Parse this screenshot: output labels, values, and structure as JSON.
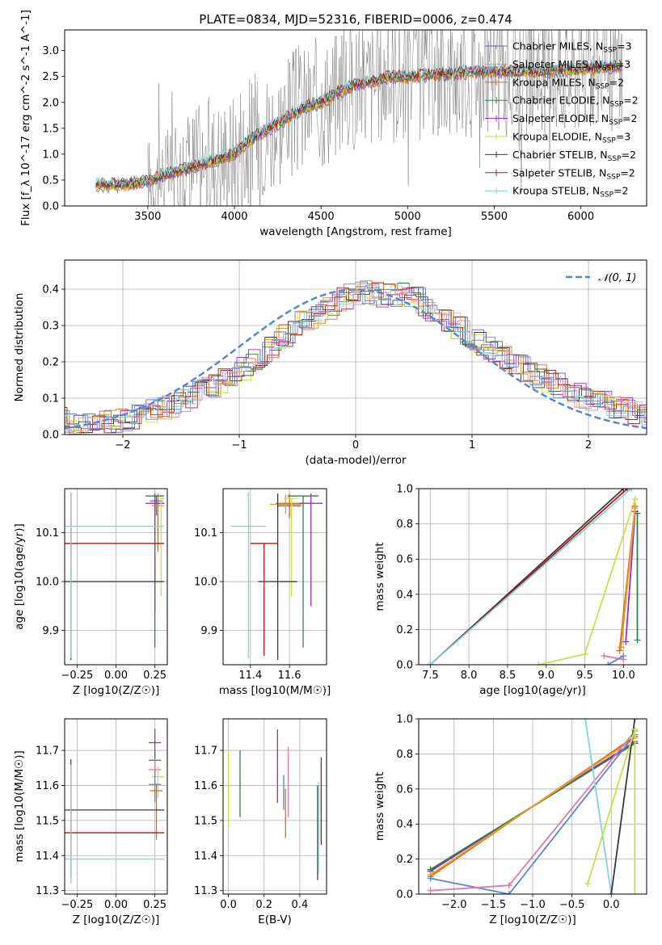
{
  "title": "PLATE=0834, MJD=52316, FIBERID=0006, z=0.474",
  "colors": {
    "chabrier_miles": "#6b5bb5",
    "salpeter_miles": "#e0a020",
    "kroupa_miles": "#e06a1a",
    "chabrier_elodie": "#3a7a4a",
    "salpeter_elodie": "#9a2ec0",
    "kroupa_elodie": "#c8e04a",
    "chabrier_stelib": "#3a3a3a",
    "salpeter_stelib": "#b01818",
    "kroupa_stelib": "#7fd6e0",
    "normal": "#5b84d6",
    "extra_blue": "#5b84d6",
    "extra_pink": "#e07aa8",
    "data": "#7a7a7a",
    "grid": "#b0b0b0"
  },
  "chart_data": [
    {
      "id": "spectrum",
      "type": "line",
      "title": "PLATE=0834, MJD=52316, FIBERID=0006, z=0.474",
      "xlabel": "wavelength [Angstrom, rest frame]",
      "ylabel": "Flux [f_λ 10^-17 erg cm^-2 s^-1 A^-1]",
      "xlim": [
        3020,
        6380
      ],
      "ylim": [
        0,
        3.4
      ],
      "xticks": [
        "3500",
        "4000",
        "4500",
        "5000",
        "5500",
        "6000"
      ],
      "yticks": [
        "0.0",
        "0.5",
        "1.0",
        "1.5",
        "2.0",
        "2.5",
        "3.0"
      ],
      "grid": false,
      "legend_position": "top-right",
      "model_curve": {
        "x": [
          3200,
          3400,
          3500,
          3600,
          3700,
          3800,
          3900,
          4000,
          4100,
          4200,
          4300,
          4400,
          4500,
          4600,
          4700,
          4800,
          4900,
          5000,
          5200,
          5400,
          5600,
          5800,
          6000,
          6240
        ],
        "y": [
          0.4,
          0.42,
          0.48,
          0.6,
          0.7,
          0.8,
          0.9,
          1.0,
          1.3,
          1.5,
          1.7,
          1.9,
          2.0,
          2.2,
          2.35,
          2.4,
          2.5,
          2.5,
          2.55,
          2.6,
          2.6,
          2.6,
          2.65,
          2.7
        ]
      },
      "series": [
        {
          "name": "Chabrier MILES, N_SSP=3",
          "color_key": "chabrier_miles",
          "marker": "-"
        },
        {
          "name": "Salpeter MILES, N_SSP=3",
          "color_key": "salpeter_miles",
          "marker": "-"
        },
        {
          "name": "Kroupa MILES, N_SSP=2",
          "color_key": "kroupa_miles",
          "marker": "+"
        },
        {
          "name": "Chabrier ELODIE, N_SSP=2",
          "color_key": "chabrier_elodie",
          "marker": "+"
        },
        {
          "name": "Salpeter ELODIE, N_SSP=2",
          "color_key": "salpeter_elodie",
          "marker": "+"
        },
        {
          "name": "Kroupa ELODIE, N_SSP=3",
          "color_key": "kroupa_elodie",
          "marker": "+"
        },
        {
          "name": "Chabrier STELIB, N_SSP=2",
          "color_key": "chabrier_stelib",
          "marker": "+"
        },
        {
          "name": "Salpeter STELIB, N_SSP=2",
          "color_key": "salpeter_stelib",
          "marker": "+"
        },
        {
          "name": "Kroupa STELIB, N_SSP=2",
          "color_key": "kroupa_stelib",
          "marker": "+"
        }
      ]
    },
    {
      "id": "residual-histogram",
      "type": "line",
      "xlabel": "(data-model)/error",
      "ylabel": "Normed distribution",
      "xlim": [
        -2.5,
        2.5
      ],
      "ylim": [
        0,
        0.48
      ],
      "xticks": [
        "-2",
        "-1",
        "0",
        "1",
        "2"
      ],
      "yticks": [
        "0.0",
        "0.1",
        "0.2",
        "0.3",
        "0.4"
      ],
      "grid": true,
      "legend_position": "top-right",
      "legend": "𝒩(0, 1)",
      "histogram_envelope": {
        "x": [
          -2.5,
          -2.0,
          -1.5,
          -1.0,
          -0.5,
          0.0,
          0.5,
          1.0,
          1.5,
          2.0,
          2.5
        ],
        "y": [
          0.02,
          0.04,
          0.09,
          0.17,
          0.3,
          0.39,
          0.38,
          0.27,
          0.17,
          0.1,
          0.05
        ]
      }
    },
    {
      "id": "age-vs-z",
      "type": "scatter",
      "xlabel": "Z [log10(Z/Z☉)]",
      "ylabel": "age [log10(age/yr)]",
      "xlim": [
        -0.33,
        0.33
      ],
      "ylim": [
        9.83,
        10.19
      ],
      "xticks": [
        "-0.25",
        "0.00",
        "0.25"
      ],
      "yticks": [
        "9.9",
        "10.0",
        "10.1"
      ],
      "grid": true,
      "points": [
        {
          "x": 0.26,
          "y": 10.165,
          "xerr": 0.04,
          "yerr": [
            0.03,
            0.01
          ],
          "c": "chabrier_miles"
        },
        {
          "x": 0.27,
          "y": 10.155,
          "xerr": 0.04,
          "yerr": [
            0.08,
            0.02
          ],
          "c": "salpeter_miles"
        },
        {
          "x": 0.27,
          "y": 10.16,
          "xerr": 0.04,
          "yerr": [
            0.1,
            0.02
          ],
          "c": "kroupa_miles"
        },
        {
          "x": 0.25,
          "y": 10.175,
          "xerr": 0.06,
          "yerr": [
            0.31,
            0.0
          ],
          "c": "chabrier_elodie"
        },
        {
          "x": 0.25,
          "y": 10.16,
          "xerr": 0.06,
          "yerr": [
            0.22,
            0.02
          ],
          "c": "salpeter_elodie"
        },
        {
          "x": 0.29,
          "y": 10.17,
          "xerr": 0.02,
          "yerr": [
            0.2,
            0.0
          ],
          "c": "kroupa_elodie"
        },
        {
          "x": -0.29,
          "y": 10.0,
          "xerr": 0.6,
          "yerr": [
            0.16,
            0.18
          ],
          "c": "chabrier_stelib"
        },
        {
          "x": -0.29,
          "y": 10.078,
          "xerr": 0.6,
          "yerr": [
            0.06,
            0.1
          ],
          "c": "salpeter_stelib"
        },
        {
          "x": -0.29,
          "y": 10.113,
          "xerr": 0.6,
          "yerr": [
            0.27,
            0.07
          ],
          "c": "kroupa_stelib"
        }
      ]
    },
    {
      "id": "age-vs-mass",
      "type": "scatter",
      "xlabel": "mass [log10(M/M☉)]",
      "xlim": [
        11.26,
        11.79
      ],
      "ylim": [
        9.83,
        10.19
      ],
      "xticks": [
        "11.4",
        "11.6"
      ],
      "yticks": [
        "9.9",
        "10.0",
        "10.1"
      ],
      "grid": true,
      "points": [
        {
          "x": 11.6,
          "y": 10.155,
          "xerr": 0.06,
          "yerr": [
            0.02,
            0.02
          ],
          "c": "chabrier_miles"
        },
        {
          "x": 11.58,
          "y": 10.158,
          "xerr": 0.08,
          "yerr": [
            0.02,
            0.02
          ],
          "c": "salpeter_miles"
        },
        {
          "x": 11.6,
          "y": 10.16,
          "xerr": 0.07,
          "yerr": [
            0.03,
            0.02
          ],
          "c": "kroupa_miles"
        },
        {
          "x": 11.67,
          "y": 10.175,
          "xerr": 0.08,
          "yerr": [
            0.31,
            0.0
          ],
          "c": "chabrier_elodie"
        },
        {
          "x": 11.71,
          "y": 10.16,
          "xerr": 0.06,
          "yerr": [
            0.21,
            0.02
          ],
          "c": "salpeter_elodie"
        },
        {
          "x": 11.61,
          "y": 10.17,
          "xerr": 0.04,
          "yerr": [
            0.2,
            0.0
          ],
          "c": "kroupa_elodie"
        },
        {
          "x": 11.54,
          "y": 10.0,
          "xerr": 0.1,
          "yerr": [
            0.16,
            0.18
          ],
          "c": "chabrier_stelib"
        },
        {
          "x": 11.47,
          "y": 10.078,
          "xerr": 0.07,
          "yerr": [
            0.23,
            0.0
          ],
          "c": "salpeter_stelib"
        },
        {
          "x": 11.39,
          "y": 10.113,
          "xerr": 0.09,
          "yerr": [
            0.27,
            0.07
          ],
          "c": "kroupa_stelib"
        }
      ]
    },
    {
      "id": "mass-weight-vs-age",
      "type": "line",
      "xlabel": "age [log10(age/yr)]",
      "ylabel": "mass weight",
      "xlim": [
        7.35,
        10.3
      ],
      "ylim": [
        0,
        1
      ],
      "xticks": [
        "7.5",
        "8.0",
        "8.5",
        "9.0",
        "9.5",
        "10.0"
      ],
      "yticks": [
        "0.0",
        "0.2",
        "0.4",
        "0.6",
        "0.8",
        "1.0"
      ],
      "grid": true,
      "series": [
        {
          "c": "chabrier_stelib",
          "x": [
            7.5,
            10.0
          ],
          "y": [
            0.0,
            1.0
          ]
        },
        {
          "c": "salpeter_stelib",
          "x": [
            7.5,
            10.05
          ],
          "y": [
            0.0,
            1.0
          ]
        },
        {
          "c": "kroupa_stelib",
          "x": [
            7.5,
            10.1
          ],
          "y": [
            0.0,
            1.0
          ]
        },
        {
          "c": "kroupa_elodie",
          "x": [
            8.9,
            9.5,
            10.15
          ],
          "y": [
            0.0,
            0.06,
            0.94
          ]
        },
        {
          "c": "chabrier_elodie",
          "x": [
            10.18,
            10.18
          ],
          "y": [
            0.14,
            0.86
          ]
        },
        {
          "c": "salpeter_elodie",
          "x": [
            10.03,
            10.15
          ],
          "y": [
            0.13,
            0.87
          ]
        },
        {
          "c": "kroupa_miles",
          "x": [
            9.95,
            10.15
          ],
          "y": [
            0.08,
            0.9
          ]
        },
        {
          "c": "salpeter_miles",
          "x": [
            9.97,
            10.15
          ],
          "y": [
            0.1,
            0.89
          ]
        },
        {
          "c": "extra_pink",
          "x": [
            9.75,
            10.0
          ],
          "y": [
            0.05,
            0.03
          ]
        },
        {
          "c": "extra_blue",
          "x": [
            9.8,
            10.0
          ],
          "y": [
            0.0,
            0.05
          ]
        }
      ]
    },
    {
      "id": "mass-vs-z",
      "type": "scatter",
      "xlabel": "Z [log10(Z/Z☉)]",
      "ylabel": "mass [log10(M/M☉)]",
      "xlim": [
        -0.33,
        0.33
      ],
      "ylim": [
        11.29,
        11.79
      ],
      "xticks": [
        "-0.25",
        "0.00",
        "0.25"
      ],
      "yticks": [
        "11.3",
        "11.4",
        "11.5",
        "11.6",
        "11.7"
      ],
      "grid": true,
      "points": [
        {
          "x": 0.25,
          "y": 11.722,
          "xerr": 0.04,
          "yerr": [
            0.04,
            0.04
          ],
          "c": "salpeter_elodie"
        },
        {
          "x": 0.25,
          "y": 11.672,
          "xerr": 0.04,
          "yerr": [
            0.05,
            0.03
          ],
          "c": "chabrier_elodie"
        },
        {
          "x": 0.25,
          "y": 11.645,
          "xerr": 0.04,
          "yerr": [
            0.04,
            0.03
          ],
          "c": "extra_pink"
        },
        {
          "x": 0.27,
          "y": 11.625,
          "xerr": 0.04,
          "yerr": [
            0.06,
            0.03
          ],
          "c": "kroupa_elodie"
        },
        {
          "x": 0.25,
          "y": 11.603,
          "xerr": 0.04,
          "yerr": [
            0.05,
            0.04
          ],
          "c": "extra_blue"
        },
        {
          "x": 0.26,
          "y": 11.585,
          "xerr": 0.04,
          "yerr": [
            0.14,
            0.02
          ],
          "c": "kroupa_miles"
        },
        {
          "x": -0.29,
          "y": 11.53,
          "xerr": 0.6,
          "yerr": [
            0.19,
            0.07
          ],
          "c": "chabrier_stelib"
        },
        {
          "x": -0.29,
          "y": 11.465,
          "xerr": 0.6,
          "yerr": [
            0.06,
            0.21
          ],
          "c": "salpeter_stelib"
        },
        {
          "x": -0.29,
          "y": 11.39,
          "xerr": 0.6,
          "yerr": [
            0.07,
            0.27
          ],
          "c": "kroupa_stelib"
        }
      ]
    },
    {
      "id": "mass-vs-ebv",
      "type": "scatter",
      "xlabel": "E(B-V)",
      "xlim": [
        -0.03,
        0.55
      ],
      "ylim": [
        11.29,
        11.79
      ],
      "xticks": [
        "0.0",
        "0.2",
        "0.4"
      ],
      "yticks": [
        "11.3",
        "11.4",
        "11.5",
        "11.6",
        "11.7"
      ],
      "grid": true,
      "points": [
        {
          "x": 0.0,
          "y": 11.58,
          "yerr": [
            0.1,
            0.12
          ],
          "c": "kroupa_elodie"
        },
        {
          "x": 0.065,
          "y": 11.61,
          "yerr": [
            0.1,
            0.09
          ],
          "c": "chabrier_elodie"
        },
        {
          "x": 0.275,
          "y": 11.65,
          "yerr": [
            0.1,
            0.11
          ],
          "c": "salpeter_elodie"
        },
        {
          "x": 0.31,
          "y": 11.57,
          "yerr": [
            0.04,
            0.06
          ],
          "c": "extra_blue"
        },
        {
          "x": 0.32,
          "y": 11.5,
          "yerr": [
            0.05,
            0.09
          ],
          "c": "kroupa_miles"
        },
        {
          "x": 0.335,
          "y": 11.61,
          "yerr": [
            0.1,
            0.1
          ],
          "c": "extra_pink"
        },
        {
          "x": 0.5,
          "y": 11.45,
          "yerr": [
            0.12,
            0.15
          ],
          "c": "chabrier_stelib"
        },
        {
          "x": 0.505,
          "y": 11.47,
          "yerr": [
            0.12,
            0.14
          ],
          "c": "kroupa_stelib"
        },
        {
          "x": 0.52,
          "y": 11.55,
          "yerr": [
            0.12,
            0.13
          ],
          "c": "salpeter_stelib"
        }
      ]
    },
    {
      "id": "mass-weight-vs-z",
      "type": "line",
      "xlabel": "Z [log10(Z/Z☉)]",
      "ylabel": "mass weight",
      "xlim": [
        -2.45,
        0.45
      ],
      "ylim": [
        0,
        1
      ],
      "xticks": [
        "-2.0",
        "-1.5",
        "-1.0",
        "-0.5",
        "0.0"
      ],
      "yticks": [
        "0.0",
        "0.2",
        "0.4",
        "0.6",
        "0.8",
        "1.0"
      ],
      "grid": true,
      "series": [
        {
          "c": "chabrier_stelib",
          "x": [
            -2.3,
            0.3
          ],
          "y": [
            0.14,
            0.86
          ]
        },
        {
          "c": "salpeter_elodie",
          "x": [
            -2.3,
            0.3
          ],
          "y": [
            0.13,
            0.87
          ]
        },
        {
          "c": "chabrier_elodie",
          "x": [
            -2.3,
            0.3
          ],
          "y": [
            0.14,
            0.86
          ]
        },
        {
          "c": "kroupa_miles",
          "x": [
            -2.3,
            0.3
          ],
          "y": [
            0.1,
            0.9
          ]
        },
        {
          "c": "salpeter_miles",
          "x": [
            -2.3,
            0.3
          ],
          "y": [
            0.11,
            0.89
          ]
        },
        {
          "c": "extra_blue",
          "x": [
            -2.3,
            -1.3,
            0.3
          ],
          "y": [
            0.09,
            0.0,
            0.91
          ]
        },
        {
          "c": "extra_pink",
          "x": [
            -2.3,
            -1.3,
            0.3
          ],
          "y": [
            0.02,
            0.05,
            0.93
          ]
        },
        {
          "c": "kroupa_stelib",
          "x": [
            -0.33,
            0.0
          ],
          "y": [
            1.0,
            0.0
          ]
        },
        {
          "c": "chabrier_stelib",
          "x": [
            0.0,
            0.3
          ],
          "y": [
            0.0,
            1.0
          ]
        },
        {
          "c": "kroupa_elodie",
          "x": [
            -0.3,
            0.3
          ],
          "y": [
            0.06,
            0.94
          ]
        },
        {
          "c": "kroupa_elodie",
          "x": [
            0.3,
            0.3
          ],
          "y": [
            0.0,
            0.94
          ]
        }
      ]
    }
  ]
}
